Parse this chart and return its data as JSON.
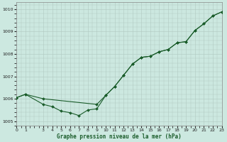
{
  "title": "Graphe pression niveau de la mer (hPa)",
  "background_color": "#cce8e0",
  "line_color": "#1a5c2a",
  "grid_color": "#b0c8c0",
  "xlim": [
    0,
    23
  ],
  "ylim": [
    1004.8,
    1010.3
  ],
  "yticks": [
    1005,
    1006,
    1007,
    1008,
    1009,
    1010
  ],
  "xticks": [
    0,
    1,
    3,
    4,
    5,
    6,
    7,
    8,
    9,
    10,
    11,
    12,
    13,
    14,
    15,
    16,
    17,
    18,
    19,
    20,
    21,
    22,
    23
  ],
  "series1_x": [
    0,
    1,
    3,
    9,
    10,
    11,
    12,
    13,
    14,
    15,
    16,
    17,
    18,
    19,
    20,
    21,
    22,
    23
  ],
  "series1_y": [
    1006.05,
    1006.2,
    1006.0,
    1005.75,
    1006.15,
    1006.55,
    1007.05,
    1007.55,
    1007.85,
    1007.9,
    1008.1,
    1008.2,
    1008.5,
    1008.55,
    1009.05,
    1009.35,
    1009.7,
    1009.88
  ],
  "series2_x": [
    0,
    1,
    3,
    4,
    5,
    6,
    7,
    8,
    9,
    10,
    11,
    12,
    13,
    14,
    15,
    16,
    17,
    18,
    19,
    20,
    21,
    22,
    23
  ],
  "series2_y": [
    1006.05,
    1006.2,
    1005.75,
    1005.65,
    1005.45,
    1005.38,
    1005.25,
    1005.5,
    1005.55,
    1006.15,
    1006.55,
    1007.05,
    1007.55,
    1007.85,
    1007.9,
    1008.1,
    1008.2,
    1008.5,
    1008.55,
    1009.05,
    1009.35,
    1009.7,
    1009.88
  ],
  "figwidth": 3.2,
  "figheight": 2.0,
  "dpi": 100,
  "marker_size": 2.0,
  "line_width": 0.8,
  "tick_fontsize": 4.5,
  "xlabel_fontsize": 5.5
}
